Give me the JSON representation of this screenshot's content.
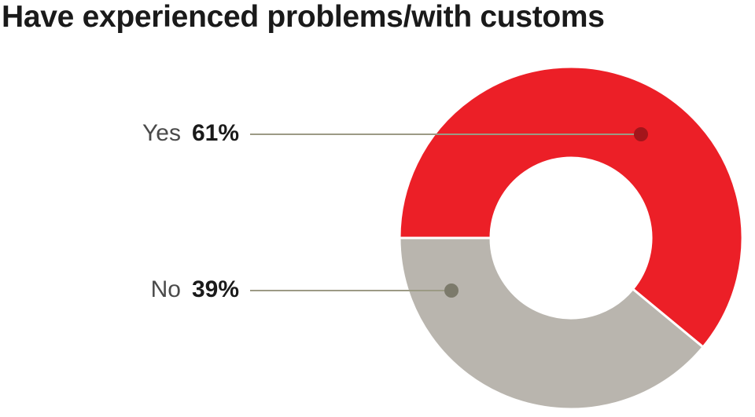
{
  "chart_data": {
    "type": "pie",
    "title": "Have experienced problems/with customs",
    "categories": [
      "Yes",
      "No"
    ],
    "values": [
      61,
      39
    ],
    "value_labels": [
      "61%",
      "39%"
    ],
    "colors": [
      "#ec1f27",
      "#b9b5ae"
    ],
    "marker_colors": [
      "#a3151b",
      "#7c7a6b"
    ],
    "leader_line_color": "#9c9a85",
    "donut": true,
    "legend": "none"
  }
}
